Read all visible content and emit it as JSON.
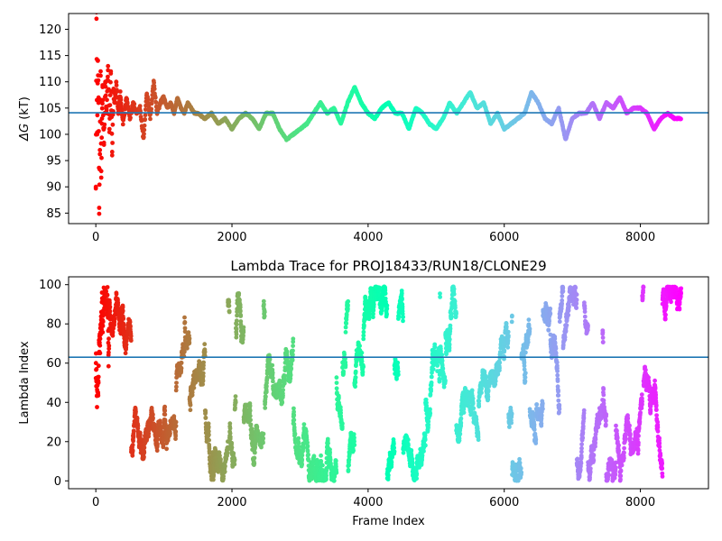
{
  "chart_data": [
    {
      "type": "scatter",
      "title": "",
      "xlabel": "",
      "ylabel": "ΔG (kT)",
      "ylabel_symbol": "ΔG",
      "ylabel_unit": " (kT)",
      "xlim": [
        -400,
        9000
      ],
      "ylim": [
        83,
        123
      ],
      "xticks": [
        0,
        2000,
        4000,
        6000,
        8000
      ],
      "yticks": [
        85,
        90,
        95,
        100,
        105,
        110,
        115,
        120
      ],
      "hline": 104.1,
      "hline_color": "#1f77b4",
      "colormap": "rainbow",
      "color_by": "frame_reversed",
      "n_frames": 8600,
      "series": [
        {
          "x": [
            0,
            10,
            20,
            30,
            40,
            50,
            60,
            70,
            80,
            90,
            100,
            120,
            140,
            160,
            180,
            200,
            220,
            240,
            260,
            280,
            300,
            330,
            360,
            400,
            450,
            500,
            550,
            600,
            650,
            700,
            750,
            800,
            850,
            900,
            950,
            1000,
            1050,
            1100,
            1150,
            1200,
            1250,
            1300,
            1350,
            1400,
            1450,
            1500,
            1600,
            1700,
            1800,
            1900,
            2000,
            2100,
            2200,
            2300,
            2400,
            2500,
            2600,
            2700,
            2800,
            2900,
            3000,
            3100,
            3200,
            3300,
            3400,
            3500,
            3600,
            3700,
            3800,
            3900,
            4000,
            4100,
            4200,
            4300,
            4400,
            4500,
            4600,
            4700,
            4800,
            4900,
            5000,
            5100,
            5200,
            5300,
            5400,
            5500,
            5600,
            5700,
            5800,
            5900,
            6000,
            6100,
            6200,
            6300,
            6400,
            6500,
            6600,
            6700,
            6800,
            6900,
            7000,
            7100,
            7200,
            7300,
            7400,
            7500,
            7600,
            7700,
            7800,
            7900,
            8000,
            8100,
            8200,
            8300,
            8400,
            8500,
            8600
          ],
          "y": [
            90,
            122,
            100,
            114,
            107,
            86,
            97,
            112,
            93,
            103,
            109,
            98,
            110,
            104,
            113,
            101,
            112,
            96,
            108,
            106,
            110,
            104,
            108,
            102,
            107,
            103,
            106,
            104,
            105,
            99,
            108,
            103,
            110,
            104,
            106,
            107,
            105,
            106,
            104,
            107,
            105,
            104,
            106,
            105,
            104,
            104,
            103,
            104,
            102,
            103,
            101,
            103,
            104,
            103,
            101,
            104,
            104,
            101,
            99,
            100,
            101,
            102,
            104,
            106,
            104,
            105,
            102,
            106,
            109,
            106,
            104,
            103,
            105,
            106,
            104,
            104,
            101,
            105,
            104,
            102,
            101,
            103,
            106,
            104,
            106,
            108,
            105,
            106,
            102,
            104,
            101,
            102,
            103,
            104,
            108,
            106,
            103,
            102,
            105,
            99,
            103,
            104,
            104,
            106,
            103,
            106,
            105,
            107,
            104,
            105,
            105,
            104,
            101,
            103,
            104,
            103,
            103
          ]
        }
      ]
    },
    {
      "type": "scatter",
      "title": "Lambda Trace for PROJ18433/RUN18/CLONE29",
      "xlabel": "Frame Index",
      "ylabel": "Lambda Index",
      "xlim": [
        -400,
        9000
      ],
      "ylim": [
        -4,
        104
      ],
      "xticks": [
        0,
        2000,
        4000,
        6000,
        8000
      ],
      "yticks": [
        0,
        20,
        40,
        60,
        80,
        100
      ],
      "hline": 63,
      "hline_color": "#1f77b4",
      "colormap": "rainbow",
      "color_by": "frame_reversed",
      "n_frames": 8600,
      "lambda_range": [
        0,
        99
      ],
      "series": [
        {
          "x_range": [
            0,
            8600
          ],
          "y_range": [
            0,
            99
          ]
        }
      ]
    }
  ]
}
